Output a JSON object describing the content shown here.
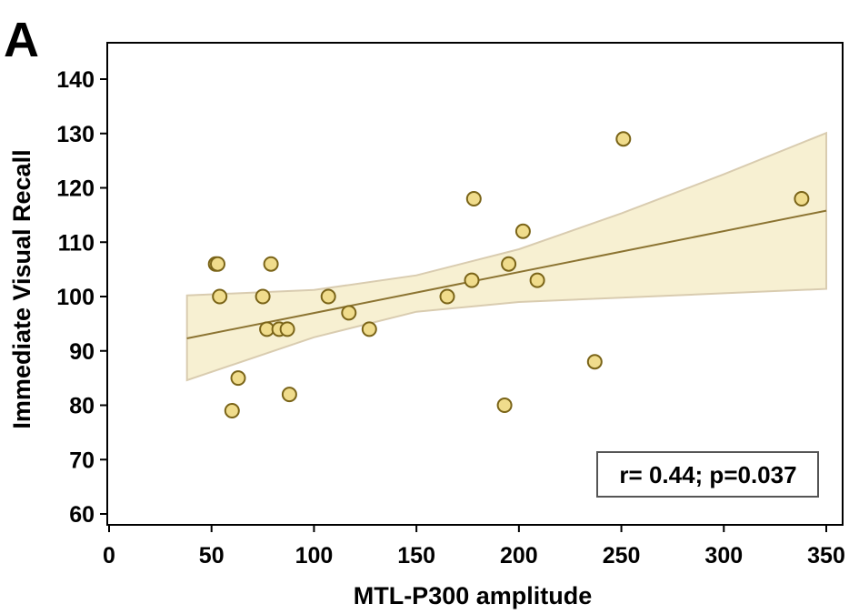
{
  "panel_label": "A",
  "annotation": "r= 0.44; p=0.037",
  "colors": {
    "point_fill": "#f0dc8c",
    "point_stroke": "#7a6418",
    "fit_line": "#8c7432",
    "band_fill": "#f7f0d2",
    "band_stroke": "#d9ccb0",
    "axis": "#000000",
    "annotation_border": "#555555"
  },
  "chart_data": {
    "type": "scatter",
    "title": "",
    "xlabel": "MTL-P300 amplitude",
    "ylabel": "Immediate Visual Recall",
    "xlim": [
      0,
      350
    ],
    "ylim": [
      57,
      147
    ],
    "xticks": [
      0,
      50,
      100,
      150,
      200,
      250,
      300,
      350
    ],
    "yticks": [
      60,
      70,
      80,
      90,
      100,
      110,
      120,
      130,
      140
    ],
    "grid": false,
    "points": [
      {
        "x": 52,
        "y": 106
      },
      {
        "x": 53,
        "y": 106
      },
      {
        "x": 54,
        "y": 100
      },
      {
        "x": 60,
        "y": 79
      },
      {
        "x": 63,
        "y": 85
      },
      {
        "x": 75,
        "y": 100
      },
      {
        "x": 77,
        "y": 94
      },
      {
        "x": 79,
        "y": 106
      },
      {
        "x": 83,
        "y": 94
      },
      {
        "x": 87,
        "y": 94
      },
      {
        "x": 88,
        "y": 82
      },
      {
        "x": 107,
        "y": 100
      },
      {
        "x": 117,
        "y": 97
      },
      {
        "x": 127,
        "y": 94
      },
      {
        "x": 165,
        "y": 100
      },
      {
        "x": 177,
        "y": 103
      },
      {
        "x": 178,
        "y": 118
      },
      {
        "x": 193,
        "y": 80
      },
      {
        "x": 195,
        "y": 106
      },
      {
        "x": 202,
        "y": 112
      },
      {
        "x": 209,
        "y": 103
      },
      {
        "x": 237,
        "y": 88
      },
      {
        "x": 251,
        "y": 129
      },
      {
        "x": 338,
        "y": 118
      }
    ],
    "fit": {
      "x": [
        38,
        350
      ],
      "y": [
        92.3,
        115.8
      ]
    },
    "ci_band": {
      "x": [
        38,
        100,
        150,
        200,
        250,
        300,
        350
      ],
      "lower": [
        84.6,
        92.5,
        97.2,
        99.0,
        99.8,
        100.6,
        101.4
      ],
      "upper": [
        100.2,
        101.2,
        103.9,
        108.7,
        115.3,
        122.5,
        130.1
      ]
    }
  }
}
